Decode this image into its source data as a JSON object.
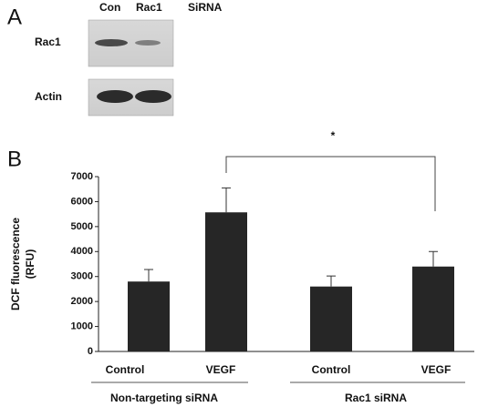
{
  "panel_a": {
    "label": "A",
    "lanes": [
      "Con",
      "Rac1",
      "SiRNA"
    ],
    "rows": [
      "Rac1",
      "Actin"
    ]
  },
  "chart_data": {
    "type": "bar",
    "panel_label": "B",
    "ylabel": [
      "DCF fluorescence",
      "(RFU)"
    ],
    "categories": [
      "Control",
      "VEGF",
      "Control",
      "VEGF"
    ],
    "groups": [
      "Non-targeting siRNA",
      "Rac1 siRNA"
    ],
    "values": [
      2800,
      5570,
      2600,
      3400
    ],
    "errors": [
      480,
      980,
      420,
      600
    ],
    "color": "#262626",
    "ylim": [
      0,
      7000
    ],
    "yticks": [
      0,
      1000,
      2000,
      3000,
      4000,
      5000,
      6000,
      7000
    ],
    "annotation": "*"
  }
}
